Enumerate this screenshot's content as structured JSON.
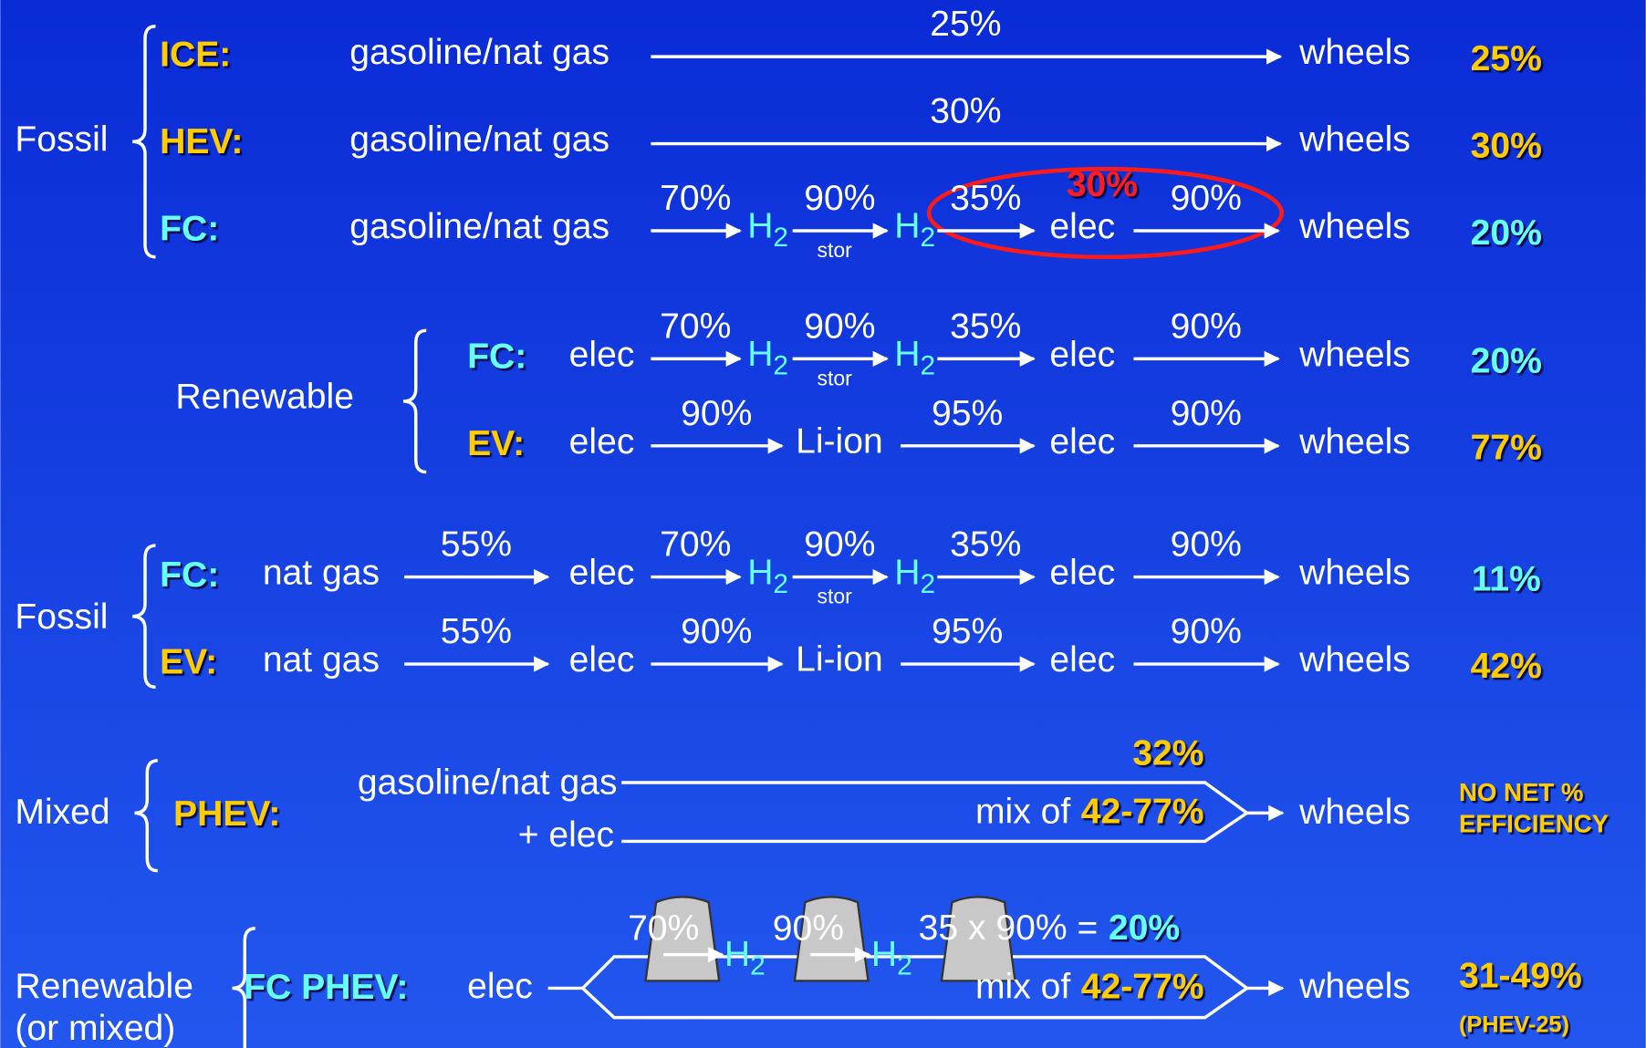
{
  "groups": [
    {
      "label": "Fossil",
      "rows": [
        {
          "name": "ICE:",
          "color": "#ffcc00",
          "steps": [
            "gasoline/nat gas",
            {
              "label": "25%"
            },
            "wheels"
          ],
          "result": "25%",
          "result_color": "#ffcc00"
        },
        {
          "name": "HEV:",
          "color": "#ffcc00",
          "steps": [
            "gasoline/nat gas",
            {
              "label": "30%"
            },
            "wheels"
          ],
          "result": "30%",
          "result_color": "#ffcc00"
        },
        {
          "name": "FC:",
          "color": "#66ffff",
          "steps": [
            "gasoline/nat gas",
            {
              "label": "70%"
            },
            {
              "text": "H",
              "sub": "2",
              "color": "#66ffff"
            },
            {
              "label": "90%",
              "note": "stor"
            },
            {
              "text": "H",
              "sub": "2",
              "color": "#66ffff"
            },
            {
              "label": "35%"
            },
            "elec",
            {
              "label": "90%"
            },
            "wheels"
          ],
          "result": "20%",
          "result_color": "#66ffff",
          "annotation": "30%",
          "annotation_color": "#ff1a1a"
        }
      ]
    },
    {
      "label": "Renewable",
      "rows": [
        {
          "name": "FC:",
          "color": "#66ffff",
          "steps": [
            "elec",
            {
              "label": "70%"
            },
            {
              "text": "H",
              "sub": "2",
              "color": "#66ffff"
            },
            {
              "label": "90%",
              "note": "stor"
            },
            {
              "text": "H",
              "sub": "2",
              "color": "#66ffff"
            },
            {
              "label": "35%"
            },
            "elec",
            {
              "label": "90%"
            },
            "wheels"
          ],
          "result": "20%",
          "result_color": "#66ffff"
        },
        {
          "name": "EV:",
          "color": "#ffcc00",
          "steps": [
            "elec",
            {
              "label": "90%"
            },
            {
              "text": "Li-ion",
              "color": "#ffffcc"
            },
            {
              "label": "95%"
            },
            "elec",
            {
              "label": "90%"
            },
            "wheels"
          ],
          "result": "77%",
          "result_color": "#ffcc00"
        }
      ]
    },
    {
      "label": "Fossil",
      "rows": [
        {
          "name": "FC:",
          "color": "#66ffff",
          "steps": [
            "nat gas",
            {
              "label": "55%"
            },
            "elec",
            {
              "label": "70%"
            },
            {
              "text": "H",
              "sub": "2",
              "color": "#66ffff"
            },
            {
              "label": "90%",
              "note": "stor"
            },
            {
              "text": "H",
              "sub": "2",
              "color": "#66ffff"
            },
            {
              "label": "35%"
            },
            "elec",
            {
              "label": "90%"
            },
            "wheels"
          ],
          "result": "11%",
          "result_color": "#66ffff"
        },
        {
          "name": "EV:",
          "color": "#ffcc00",
          "steps": [
            "nat gas",
            {
              "label": "55%"
            },
            "elec",
            {
              "label": "90%"
            },
            {
              "text": "Li-ion",
              "color": "#ffffcc"
            },
            {
              "label": "95%"
            },
            "elec",
            {
              "label": "90%"
            },
            "wheels"
          ],
          "result": "42%",
          "result_color": "#ffcc00"
        }
      ]
    }
  ],
  "mixed": {
    "label": "Mixed",
    "name": "PHEV:",
    "inputs": [
      "gasoline/nat gas",
      "+ elec"
    ],
    "share": "32%",
    "mix_text": "mix of",
    "mix_range": "42-77%",
    "end": "wheels",
    "result": [
      "NO NET %",
      "EFFICIENCY"
    ]
  },
  "fc_phev": {
    "label": [
      "Renewable",
      "(or mixed)"
    ],
    "name": "FC PHEV:",
    "source": "elec",
    "steps": [
      "70%",
      {
        "text": "H",
        "sub": "2"
      },
      "90%",
      {
        "text": "H",
        "sub": "2"
      }
    ],
    "formula": "35 x 90% =",
    "formula_result": "20%",
    "mix_text": "mix of",
    "mix_range": "42-77%",
    "end": "wheels",
    "result": "31-49%",
    "result_note": "(PHEV-25)"
  }
}
